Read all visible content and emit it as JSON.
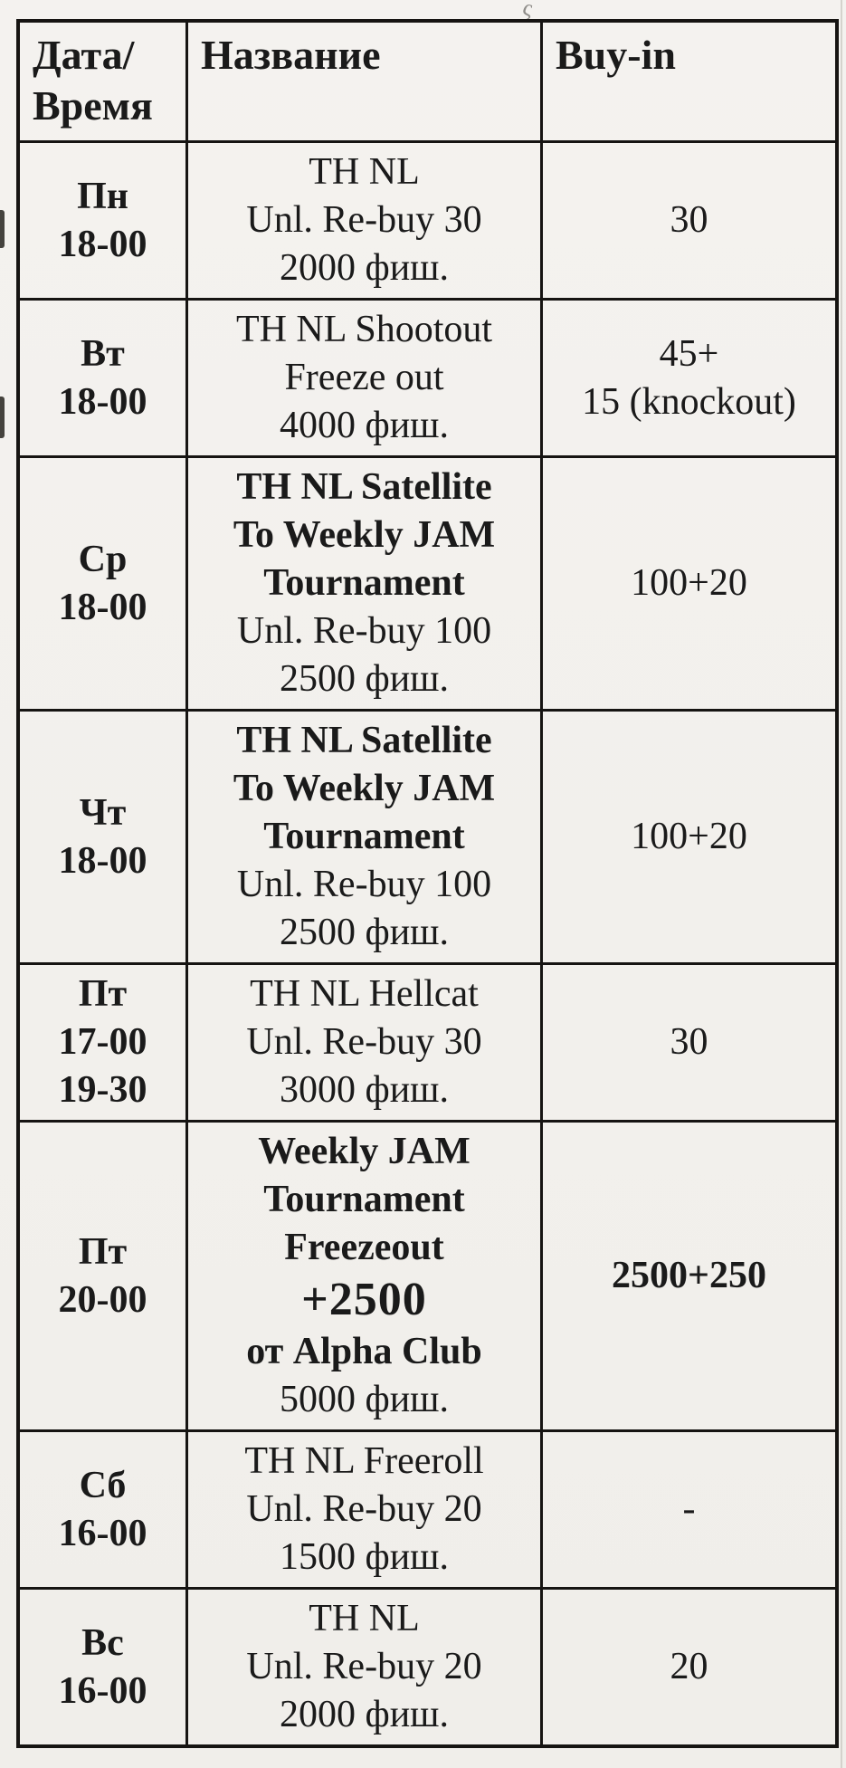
{
  "colors": {
    "ink": "#1a1a1a",
    "paper": "#f2f0ec",
    "border": "#161412"
  },
  "artifacts": {
    "squiggle_glyph": "ς"
  },
  "table": {
    "header": {
      "date_time": "Дата/\nВремя",
      "name": "Название",
      "buyin": "Buy-in"
    },
    "rows": [
      {
        "day": [
          "Пн",
          "18-00"
        ],
        "name": [
          {
            "text": "TH NL",
            "bold": false
          },
          {
            "text": "Unl. Re-buy 30",
            "bold": false
          },
          {
            "text": "2000 фиш.",
            "bold": false
          }
        ],
        "buyin": [
          {
            "text": "30",
            "bold": false
          }
        ]
      },
      {
        "day": [
          "Вт",
          "18-00"
        ],
        "name": [
          {
            "text": "TH NL Shootout",
            "bold": false
          },
          {
            "text": "Freeze out",
            "bold": false
          },
          {
            "text": "4000 фиш.",
            "bold": false
          }
        ],
        "buyin": [
          {
            "text": "45+",
            "bold": false
          },
          {
            "text": "15 (knockout)",
            "bold": false
          }
        ]
      },
      {
        "day": [
          "Ср",
          "18-00"
        ],
        "name": [
          {
            "text": "TH NL Satellite",
            "bold": true
          },
          {
            "text": "To Weekly JAM",
            "bold": true
          },
          {
            "text": "Tournament",
            "bold": true
          },
          {
            "text": "Unl. Re-buy 100",
            "bold": false
          },
          {
            "text": "2500 фиш.",
            "bold": false
          }
        ],
        "buyin": [
          {
            "text": "100+20",
            "bold": false
          }
        ]
      },
      {
        "day": [
          "Чт",
          "18-00"
        ],
        "name": [
          {
            "text": "TH NL Satellite",
            "bold": true
          },
          {
            "text": "To Weekly JAM",
            "bold": true
          },
          {
            "text": "Tournament",
            "bold": true
          },
          {
            "text": "Unl. Re-buy 100",
            "bold": false
          },
          {
            "text": "2500 фиш.",
            "bold": false
          }
        ],
        "buyin": [
          {
            "text": "100+20",
            "bold": false
          }
        ]
      },
      {
        "day": [
          "Пт",
          "17-00",
          "19-30"
        ],
        "name": [
          {
            "text": "TH NL Hellcat",
            "bold": false
          },
          {
            "text": "Unl. Re-buy 30",
            "bold": false
          },
          {
            "text": "3000 фиш.",
            "bold": false
          }
        ],
        "buyin": [
          {
            "text": "30",
            "bold": false
          }
        ]
      },
      {
        "day": [
          "Пт",
          "20-00"
        ],
        "name": [
          {
            "text": "Weekly JAM",
            "bold": true
          },
          {
            "text": "Tournament",
            "bold": true
          },
          {
            "text": "Freezeout",
            "bold": true
          },
          {
            "text": "+2500",
            "bold": true,
            "large": true
          },
          {
            "text": "от Alpha Club",
            "bold": true
          },
          {
            "text": "5000 фиш.",
            "bold": false
          }
        ],
        "buyin": [
          {
            "text": "2500+250",
            "bold": true
          }
        ]
      },
      {
        "day": [
          "Сб",
          "16-00"
        ],
        "name": [
          {
            "text": "TH NL Freeroll",
            "bold": false
          },
          {
            "text": "Unl. Re-buy 20",
            "bold": false
          },
          {
            "text": "1500 фиш.",
            "bold": false
          }
        ],
        "buyin": [
          {
            "text": "-",
            "bold": false
          }
        ]
      },
      {
        "day": [
          "Вс",
          "16-00"
        ],
        "name": [
          {
            "text": "TH NL",
            "bold": false
          },
          {
            "text": "Unl. Re-buy 20",
            "bold": false
          },
          {
            "text": "2000 фиш.",
            "bold": false
          }
        ],
        "buyin": [
          {
            "text": "20",
            "bold": false
          }
        ]
      }
    ]
  }
}
